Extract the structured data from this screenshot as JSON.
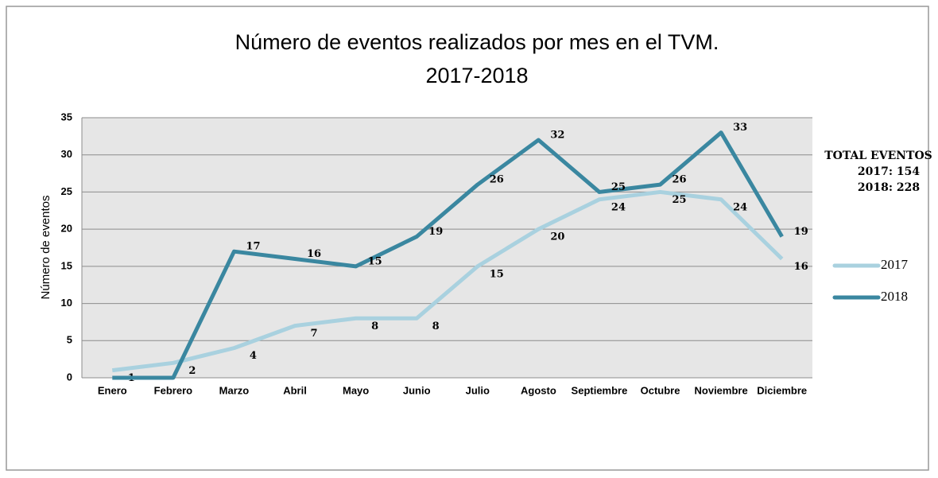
{
  "chart_data": {
    "type": "line",
    "title": [
      "Número de eventos realizados por mes en el TVM.",
      "2017-2018"
    ],
    "y_label": "Número de eventos",
    "categories": [
      "Enero",
      "Febrero",
      "Marzo",
      "Abril",
      "Mayo",
      "Junio",
      "Julio",
      "Agosto",
      "Septiembre",
      "Octubre",
      "Noviembre",
      "Diciembre"
    ],
    "series": [
      {
        "name": "2017",
        "color": "#a9d1df",
        "values": [
          1,
          2,
          4,
          7,
          8,
          8,
          15,
          20,
          24,
          25,
          24,
          16
        ]
      },
      {
        "name": "2018",
        "color": "#3a87a0",
        "values": [
          0,
          0,
          17,
          16,
          15,
          19,
          26,
          32,
          25,
          26,
          33,
          19
        ],
        "value_labels": [
          null,
          null,
          "17",
          "16",
          "15",
          "19",
          "26",
          "32",
          "25",
          "26",
          "33",
          "19"
        ]
      }
    ],
    "ylim": [
      0,
      35
    ],
    "yticks": [
      0,
      5,
      10,
      15,
      20,
      25,
      30,
      35
    ],
    "grid": true,
    "legend": "right",
    "annotation": [
      "TOTAL EVENTOS",
      "2017: 154",
      "2018: 228"
    ]
  }
}
